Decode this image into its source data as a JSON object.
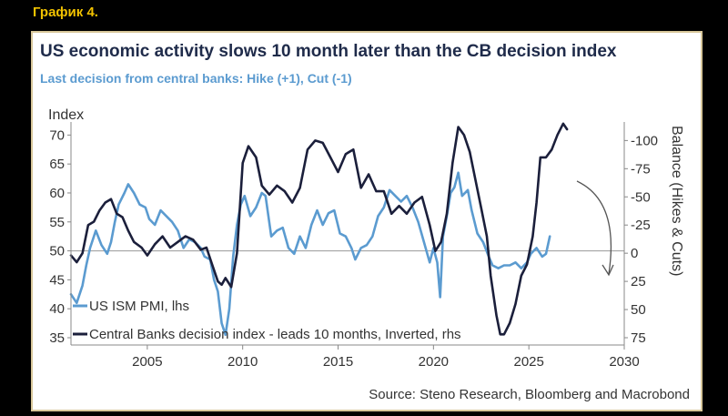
{
  "figure_label": "График 4.",
  "chart_data": {
    "type": "line",
    "title": "US economic activity slows 10 month later than the CB decision index",
    "subtitle": "Last decision from central banks: Hike (+1), Cut (-1)",
    "ylabel_left": "Index",
    "ylabel_right": "Balance (Hikes & Cuts)",
    "source": "Source: Steno Research, Bloomberg and Macrobond",
    "xlim": [
      2001.0,
      2030.0
    ],
    "ylim_left": [
      35,
      71
    ],
    "ylim_right": [
      75,
      -110
    ],
    "x_ticks": [
      2005,
      2010,
      2015,
      2020,
      2025,
      2030
    ],
    "y_ticks_left": [
      35,
      40,
      45,
      50,
      55,
      60,
      65,
      70
    ],
    "y_ticks_right": [
      75,
      50,
      25,
      0,
      -25,
      -50,
      -75,
      -100
    ],
    "reference_line_left": 50,
    "series": [
      {
        "name": "US ISM PMI, lhs",
        "legend": "US ISM PMI, lhs",
        "axis": "left",
        "color": "#5b9bd0",
        "x": [
          2001.0,
          2001.3,
          2001.6,
          2001.8,
          2002.0,
          2002.3,
          2002.6,
          2002.9,
          2003.1,
          2003.3,
          2003.5,
          2003.8,
          2004.0,
          2004.3,
          2004.6,
          2004.9,
          2005.1,
          2005.4,
          2005.7,
          2006.0,
          2006.3,
          2006.6,
          2006.9,
          2007.2,
          2007.5,
          2007.8,
          2008.0,
          2008.3,
          2008.5,
          2008.7,
          2008.9,
          2009.1,
          2009.3,
          2009.5,
          2009.7,
          2009.9,
          2010.1,
          2010.4,
          2010.7,
          2011.0,
          2011.2,
          2011.5,
          2011.8,
          2012.1,
          2012.4,
          2012.7,
          2013.0,
          2013.3,
          2013.6,
          2013.9,
          2014.2,
          2014.5,
          2014.8,
          2015.1,
          2015.4,
          2015.7,
          2015.9,
          2016.2,
          2016.5,
          2016.8,
          2017.1,
          2017.4,
          2017.7,
          2018.0,
          2018.3,
          2018.6,
          2018.9,
          2019.2,
          2019.5,
          2019.8,
          2020.0,
          2020.2,
          2020.35,
          2020.5,
          2020.7,
          2020.9,
          2021.1,
          2021.3,
          2021.5,
          2021.8,
          2022.0,
          2022.3,
          2022.6,
          2022.9,
          2023.1,
          2023.4,
          2023.7,
          2024.0,
          2024.3,
          2024.6,
          2024.9,
          2025.1,
          2025.4,
          2025.7,
          2025.9,
          2026.1
        ],
        "y": [
          42.5,
          41.0,
          44.0,
          47.5,
          50.5,
          53.5,
          51.0,
          49.5,
          51.5,
          55.0,
          58.0,
          60.0,
          61.5,
          60.0,
          58.0,
          57.5,
          55.5,
          54.5,
          57.0,
          56.0,
          55.0,
          53.5,
          50.5,
          52.0,
          51.5,
          50.5,
          49.0,
          48.5,
          45.0,
          43.0,
          37.5,
          35.5,
          40.0,
          49.0,
          54.5,
          58.0,
          59.5,
          56.0,
          57.5,
          60.0,
          59.5,
          52.5,
          53.5,
          54.0,
          50.5,
          49.5,
          52.5,
          50.5,
          54.5,
          57.0,
          54.5,
          56.5,
          57.0,
          53.0,
          52.5,
          50.5,
          48.5,
          50.5,
          51.0,
          52.5,
          56.0,
          57.5,
          60.5,
          59.5,
          58.5,
          59.5,
          57.5,
          55.0,
          51.5,
          48.0,
          50.5,
          48.0,
          42.0,
          52.5,
          56.0,
          60.0,
          61.0,
          63.5,
          59.5,
          60.5,
          57.0,
          53.0,
          51.5,
          49.0,
          47.5,
          47.0,
          47.5,
          47.5,
          48.0,
          47.0,
          48.0,
          49.5,
          50.5,
          49.0,
          49.5,
          52.5
        ]
      },
      {
        "name": "Central Banks decision index",
        "legend": "Central Banks decision index -  leads 10 months, Inverted, rhs",
        "axis": "right",
        "color": "#1b1f3b",
        "x": [
          2001.0,
          2001.3,
          2001.6,
          2001.9,
          2002.2,
          2002.5,
          2002.8,
          2003.1,
          2003.4,
          2003.7,
          2004.0,
          2004.3,
          2004.7,
          2005.0,
          2005.4,
          2005.8,
          2006.2,
          2006.6,
          2007.0,
          2007.4,
          2007.8,
          2008.1,
          2008.4,
          2008.7,
          2008.9,
          2009.1,
          2009.4,
          2009.7,
          2010.0,
          2010.3,
          2010.7,
          2011.0,
          2011.4,
          2011.8,
          2012.2,
          2012.6,
          2013.0,
          2013.4,
          2013.8,
          2014.2,
          2014.6,
          2015.0,
          2015.4,
          2015.8,
          2016.2,
          2016.6,
          2017.0,
          2017.4,
          2017.8,
          2018.2,
          2018.6,
          2019.0,
          2019.4,
          2019.8,
          2020.1,
          2020.4,
          2020.7,
          2021.0,
          2021.3,
          2021.6,
          2021.9,
          2022.2,
          2022.5,
          2022.8,
          2023.0,
          2023.3,
          2023.5,
          2023.7,
          2024.0,
          2024.3,
          2024.6,
          2024.9,
          2025.2,
          2025.4,
          2025.6,
          2025.9,
          2026.2,
          2026.5,
          2026.8,
          2027.0
        ],
        "y": [
          2,
          8,
          0,
          -25,
          -28,
          -38,
          -45,
          -48,
          -35,
          -32,
          -20,
          -10,
          -5,
          2,
          -8,
          -15,
          -5,
          -10,
          -15,
          -12,
          -3,
          -5,
          10,
          25,
          28,
          22,
          30,
          0,
          -80,
          -95,
          -85,
          -60,
          -52,
          -60,
          -55,
          -45,
          -58,
          -92,
          -100,
          -98,
          -85,
          -72,
          -88,
          -92,
          -58,
          -70,
          -55,
          -55,
          -35,
          -42,
          -35,
          -45,
          -50,
          -25,
          -2,
          -10,
          -35,
          -80,
          -112,
          -105,
          -90,
          -65,
          -40,
          -15,
          20,
          55,
          72,
          72,
          62,
          45,
          20,
          10,
          -15,
          -45,
          -85,
          -85,
          -92,
          -105,
          -115,
          -110
        ]
      }
    ],
    "annotation": "curved arrow pointing down"
  }
}
